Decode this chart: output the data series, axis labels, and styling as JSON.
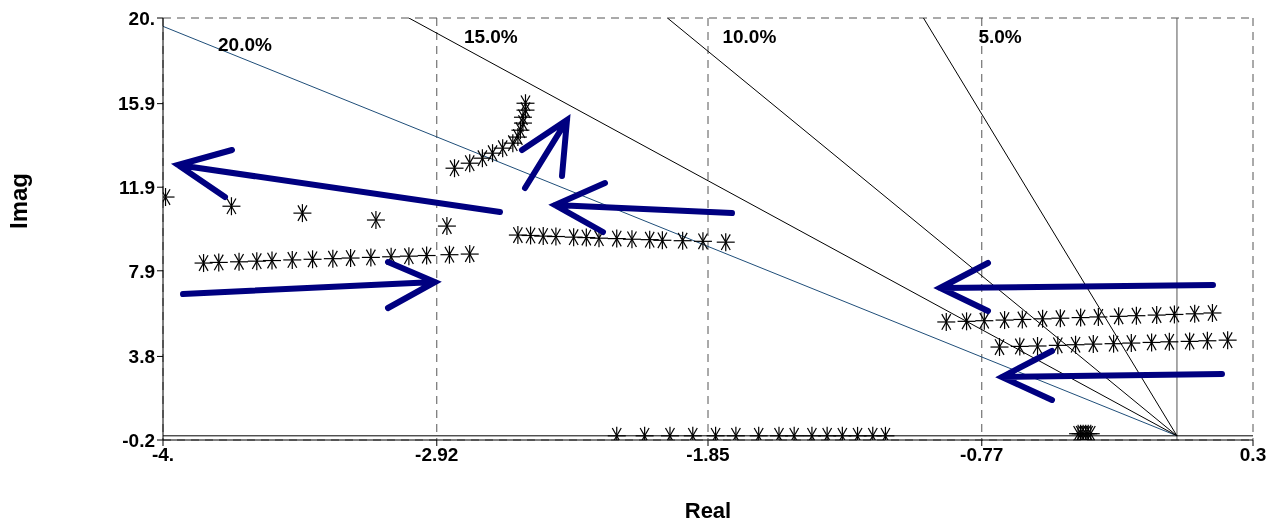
{
  "chart_data": {
    "type": "scatter",
    "xlabel": "Real",
    "ylabel": "Imag",
    "xlim": [
      -4,
      0.3
    ],
    "xticks": [
      {
        "value": -4,
        "label": "-4."
      },
      -2.92,
      -1.85,
      -0.77,
      0.3
    ],
    "ylim": [
      -0.2,
      20
    ],
    "yticks": [
      -0.2,
      3.8,
      7.9,
      11.9,
      15.9,
      {
        "value": 20,
        "label": "20."
      }
    ],
    "grid": true,
    "marker": "cross",
    "legend": false,
    "series": [
      {
        "color": "#000000",
        "x": [
          -3.84,
          -3.78,
          -3.7,
          -3.63,
          -3.57,
          -3.49,
          -3.41,
          -3.33,
          -3.26,
          -3.18,
          -3.1,
          -3.03,
          -2.96,
          -2.87,
          -2.79
        ],
        "values": [
          8.27,
          8.3,
          8.33,
          8.36,
          8.39,
          8.42,
          8.45,
          8.48,
          8.51,
          8.54,
          8.57,
          8.6,
          8.63,
          8.67,
          8.7
        ]
      },
      {
        "color": "#000000",
        "x": [
          -3.99,
          -3.73,
          -3.45,
          -3.16,
          -2.88
        ],
        "values": [
          11.43,
          10.99,
          10.66,
          10.33,
          10.04
        ]
      },
      {
        "color": "#000000",
        "x": [
          -2.85,
          -2.79,
          -2.74,
          -2.7,
          -2.66,
          -2.62,
          -2.6,
          -2.59,
          -2.58,
          -2.58,
          -2.57,
          -2.57
        ],
        "values": [
          12.81,
          13.05,
          13.29,
          13.53,
          13.77,
          14.01,
          14.3,
          14.63,
          14.97,
          15.25,
          15.59,
          15.92
        ]
      },
      {
        "color": "#000000",
        "x": [
          -2.6,
          -2.55,
          -2.5,
          -2.45,
          -2.38,
          -2.33,
          -2.28,
          -2.21,
          -2.15,
          -2.08,
          -2.03,
          -1.95,
          -1.87,
          -1.78
        ],
        "values": [
          9.61,
          9.59,
          9.56,
          9.54,
          9.51,
          9.49,
          9.46,
          9.44,
          9.41,
          9.39,
          9.36,
          9.34,
          9.31,
          9.27
        ]
      },
      {
        "color": "#000000",
        "x": [
          -0.91,
          -0.83,
          -0.76,
          -0.68,
          -0.61,
          -0.53,
          -0.46,
          -0.38,
          -0.31,
          -0.23,
          -0.16,
          -0.08,
          -0.01,
          0.07,
          0.14
        ],
        "values": [
          5.45,
          5.48,
          5.51,
          5.54,
          5.57,
          5.6,
          5.63,
          5.66,
          5.69,
          5.72,
          5.75,
          5.78,
          5.81,
          5.84,
          5.88
        ]
      },
      {
        "color": "#000000",
        "x": [
          -0.7,
          -0.62,
          -0.55,
          -0.47,
          -0.4,
          -0.33,
          -0.25,
          -0.18,
          -0.1,
          -0.03,
          0.05,
          0.12,
          0.2
        ],
        "values": [
          4.25,
          4.28,
          4.3,
          4.33,
          4.36,
          4.39,
          4.41,
          4.44,
          4.47,
          4.5,
          4.52,
          4.55,
          4.58
        ]
      },
      {
        "color": "#000000",
        "x": [
          -2.21,
          -2.1,
          -2.0,
          -1.91,
          -1.82,
          -1.74,
          -1.65,
          -1.57,
          -1.51,
          -1.44,
          -1.38,
          -1.32,
          -1.26,
          -1.2,
          -1.15
        ],
        "values": [
          0,
          0,
          0,
          0,
          0,
          0,
          0,
          0,
          0,
          0,
          0,
          0,
          0,
          0,
          0
        ]
      },
      {
        "color": "#000000",
        "x": [
          -0.39,
          -0.38,
          -0.37,
          -0.36,
          -0.35,
          -0.34
        ],
        "values": [
          0.1,
          0.1,
          0.1,
          0.1,
          0.1,
          0.1
        ]
      },
      {
        "type": "line",
        "marker": "none",
        "name": "20.0%",
        "color": "#1f4e79",
        "x": [
          0,
          -4
        ],
        "values": [
          0,
          19.6
        ]
      },
      {
        "type": "line",
        "marker": "none",
        "name": "15.0%",
        "color": "#000000",
        "x": [
          0,
          -3.03
        ],
        "values": [
          0,
          20
        ]
      },
      {
        "type": "line",
        "marker": "none",
        "name": "10.0%",
        "color": "#000000",
        "x": [
          0,
          -2.01
        ],
        "values": [
          0,
          20
        ]
      },
      {
        "type": "line",
        "marker": "none",
        "name": "5.0%",
        "color": "#000000",
        "x": [
          0,
          -1.0
        ],
        "values": [
          0,
          20
        ]
      }
    ],
    "ref_lines": [
      {
        "axis": "x",
        "value": 0,
        "color": "#555555"
      },
      {
        "axis": "y",
        "value": 0,
        "color": "#000000"
      }
    ]
  }
}
